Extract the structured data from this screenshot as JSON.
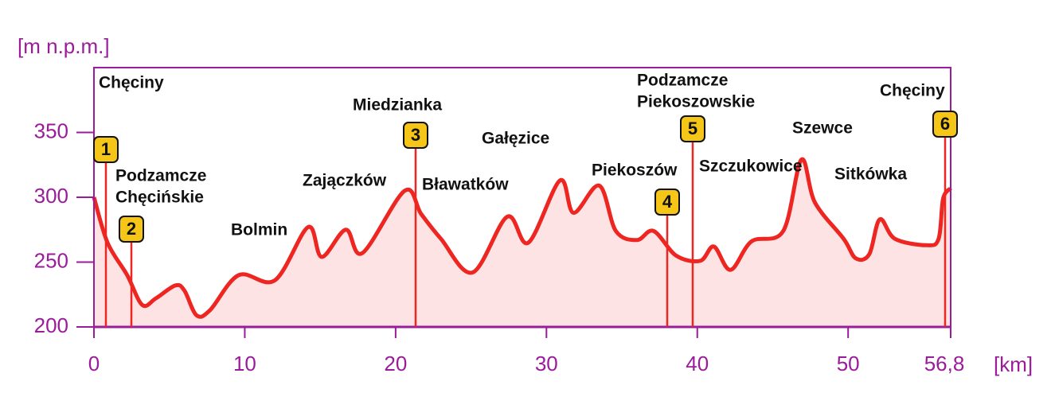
{
  "chart_data": {
    "type": "line",
    "y_label": "[m n.p.m.]",
    "x_label": "[km]",
    "xlim": [
      0,
      56.8
    ],
    "ylim": [
      200,
      400
    ],
    "xticks": [
      0,
      10,
      20,
      30,
      40,
      50,
      {
        "value": 56.8,
        "label": "56,8"
      }
    ],
    "yticks": [
      200,
      250,
      300,
      350
    ],
    "series": [
      {
        "name": "profile",
        "color": "#ee2622",
        "fill": "#fde3e3",
        "x": [
          0,
          0.9,
          2.2,
          3.2,
          4.1,
          5.4,
          6,
          6.8,
          7.7,
          9.6,
          12,
          14.2,
          15.1,
          16.7,
          17.8,
          20.6,
          21.7,
          23,
          25.1,
          27.4,
          28.8,
          30.9,
          31.8,
          33.5,
          34.6,
          36,
          37.1,
          38.6,
          40.2,
          41.1,
          42.2,
          43.6,
          45.7,
          46.9,
          47.8,
          49.7,
          50.5,
          51.4,
          52.1,
          53.1,
          55.2,
          56,
          56.3,
          56.8
        ],
        "values": [
          300,
          265,
          240,
          217,
          222,
          232,
          228,
          209,
          213,
          240,
          236,
          277,
          254,
          275,
          257,
          305,
          287,
          268,
          242,
          285,
          265,
          313,
          288,
          309,
          274,
          267,
          274,
          255,
          251,
          262,
          244,
          266,
          274,
          329,
          296,
          268,
          253,
          256,
          283,
          268,
          263,
          268,
          299,
          307
        ]
      }
    ],
    "places": [
      {
        "lines": [
          "Chęciny"
        ]
      },
      {
        "lines": [
          "Podzamcze",
          "Chęcińskie"
        ]
      },
      {
        "lines": [
          "Bolmin"
        ]
      },
      {
        "lines": [
          "Zajączków"
        ]
      },
      {
        "lines": [
          "Miedzianka"
        ]
      },
      {
        "lines": [
          "Bławatków"
        ]
      },
      {
        "lines": [
          "Gałęzice"
        ]
      },
      {
        "lines": [
          "Piekoszów"
        ]
      },
      {
        "lines": [
          "Podzamcze",
          "Piekoszowskie"
        ]
      },
      {
        "lines": [
          "Szczukowice"
        ]
      },
      {
        "lines": [
          "Szewce"
        ]
      },
      {
        "lines": [
          "Sitkówka"
        ]
      },
      {
        "lines": [
          "Chęciny"
        ]
      }
    ],
    "markers": [
      "1",
      "2",
      "3",
      "4",
      "5",
      "6"
    ]
  }
}
